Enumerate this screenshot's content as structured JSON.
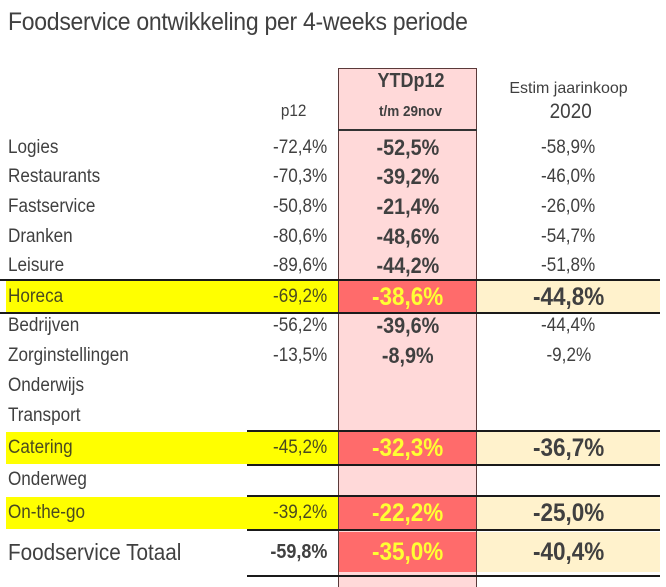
{
  "title": "Foodservice ontwikkeling per 4-weeks periode",
  "headers": {
    "p12": "p12",
    "ytd_line1": "YTDp12",
    "ytd_line2": "t/m  29nov",
    "estim_line1": "Estim jaarinkoop",
    "estim_line2": "2020"
  },
  "colors": {
    "highlight_yellow": "#ffff00",
    "ytd_column_fill": "#ffd9d9",
    "ytd_highlight_fill": "#ff6b6b",
    "ytd_highlight_text": "#ffff33",
    "estim_highlight_fill": "#fff2cc"
  },
  "rows": [
    {
      "label": "Logies",
      "p12": "-72,4%",
      "ytd": "-52,5%",
      "estim": "-58,9%"
    },
    {
      "label": "Restaurants",
      "p12": "-70,3%",
      "ytd": "-39,2%",
      "estim": "-46,0%"
    },
    {
      "label": "Fastservice",
      "p12": "-50,8%",
      "ytd": "-21,4%",
      "estim": "-26,0%"
    },
    {
      "label": "Dranken",
      "p12": "-80,6%",
      "ytd": "-48,6%",
      "estim": "-54,7%"
    },
    {
      "label": "Leisure",
      "p12": "-89,6%",
      "ytd": "-44,2%",
      "estim": "-51,8%"
    },
    {
      "label": "Horeca",
      "p12": "-69,2%",
      "ytd": "-38,6%",
      "estim": "-44,8%",
      "subtotal": true
    },
    {
      "label": "Bedrijven",
      "p12": "-56,2%",
      "ytd": "-39,6%",
      "estim": "-44,4%"
    },
    {
      "label": "Zorginstellingen",
      "p12": "-13,5%",
      "ytd": "-8,9%",
      "estim": "-9,2%"
    },
    {
      "label": "Onderwijs",
      "p12": "",
      "ytd": "",
      "estim": ""
    },
    {
      "label": "Transport",
      "p12": "",
      "ytd": "",
      "estim": ""
    },
    {
      "label": "Catering",
      "p12": "-45,2%",
      "ytd": "-32,3%",
      "estim": "-36,7%",
      "subtotal": true
    },
    {
      "label": "Onderweg",
      "p12": "",
      "ytd": "",
      "estim": ""
    },
    {
      "label": "On-the-go",
      "p12": "-39,2%",
      "ytd": "-22,2%",
      "estim": "-25,0%",
      "subtotal": true
    },
    {
      "label": "Foodservice Totaal",
      "p12": "-59,8%",
      "ytd": "-35,0%",
      "estim": "-40,4%",
      "total": true
    }
  ]
}
